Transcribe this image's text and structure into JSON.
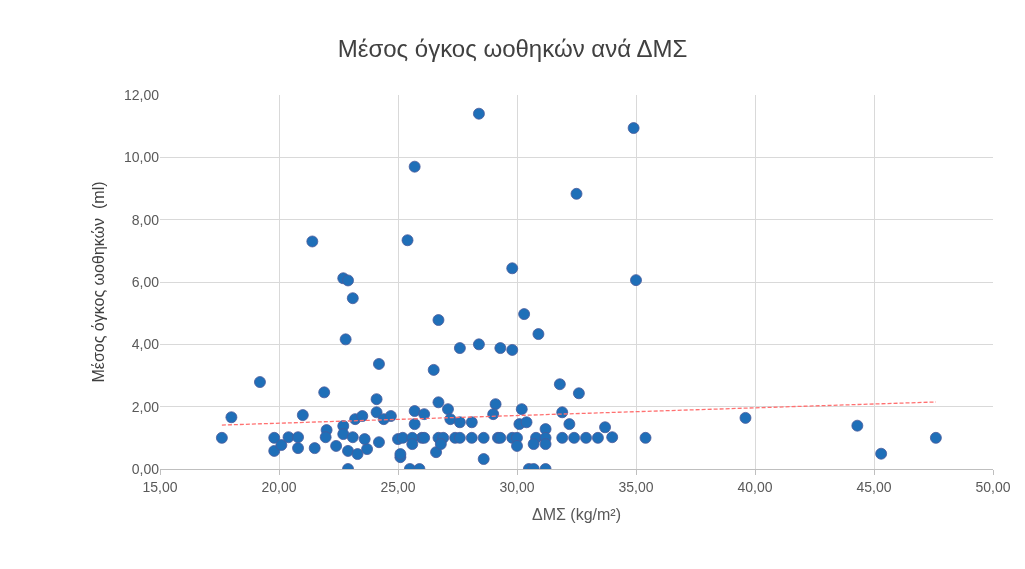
{
  "chart_data": {
    "type": "scatter",
    "title": "Μέσος όγκος ωοθηκών ανά ΔΜΣ",
    "xlabel": "ΔΜΣ (kg/m²)",
    "ylabel": "Μέσος όγκος ωοθηκών  (ml)",
    "xlim": [
      15,
      50
    ],
    "xticks": [
      {
        "value": 15,
        "label": "15,00"
      },
      {
        "value": 20,
        "label": "20,00"
      },
      {
        "value": 25,
        "label": "25,00"
      },
      {
        "value": 30,
        "label": "30,00"
      },
      {
        "value": 35,
        "label": "35,00"
      },
      {
        "value": 40,
        "label": "40,00"
      },
      {
        "value": 45,
        "label": "45,00"
      },
      {
        "value": 50,
        "label": "50,00"
      }
    ],
    "ylim": [
      0,
      12
    ],
    "yticks": [
      {
        "value": 0,
        "label": "0,00"
      },
      {
        "value": 2,
        "label": "2,00"
      },
      {
        "value": 4,
        "label": "4,00"
      },
      {
        "value": 6,
        "label": "6,00"
      },
      {
        "value": 8,
        "label": "8,00"
      },
      {
        "value": 10,
        "label": "10,00"
      },
      {
        "value": 12,
        "label": "12,00"
      }
    ],
    "grid": true,
    "legend": false,
    "series": [
      {
        "marker": "circle",
        "color": "#1f6fb8",
        "x": [
          28.4,
          34.9,
          25.7,
          32.5,
          21.4,
          25.4,
          29.8,
          22.7,
          22.9,
          23.1,
          35.0,
          26.7,
          30.3,
          30.9,
          22.8,
          27.6,
          28.4,
          29.3,
          29.8,
          24.2,
          26.5,
          19.2,
          31.8,
          32.6,
          21.9,
          39.6,
          44.3,
          45.3,
          47.6,
          35.4,
          34.0,
          33.7,
          18.0,
          17.6,
          19.8,
          19.8,
          20.1,
          20.4,
          20.8,
          20.8,
          21.0,
          21.5,
          22.0,
          21.96,
          22.4,
          22.7,
          22.7,
          22.9,
          22.9,
          23.2,
          23.3,
          23.5,
          24.1,
          24.1,
          23.7,
          24.2,
          24.4,
          24.7,
          25.0,
          25.1,
          23.6,
          23.1,
          25.7,
          26.1,
          25.7,
          26.7,
          27.1,
          27.2,
          27.6,
          28.1,
          29.1,
          29.0,
          30.2,
          30.1,
          30.4,
          31.9,
          32.2,
          31.2,
          26.0,
          26.1,
          26.7,
          26.9,
          27.4,
          27.6,
          28.1,
          28.6,
          29.2,
          29.3,
          29.8,
          30.0,
          30.8,
          31.2,
          31.9,
          32.4,
          32.9,
          33.4,
          25.2,
          25.6,
          25.1,
          25.6,
          26.6,
          26.8,
          28.6,
          30.0,
          30.7,
          31.2,
          25.5,
          25.9,
          30.5,
          30.7,
          31.2
        ],
        "values": [
          11.4,
          10.94,
          9.7,
          8.83,
          7.3,
          7.34,
          6.44,
          6.12,
          6.05,
          5.48,
          6.06,
          4.78,
          4.97,
          4.33,
          4.16,
          3.88,
          4.0,
          3.88,
          3.82,
          3.37,
          3.18,
          2.79,
          2.72,
          2.43,
          2.46,
          1.64,
          1.39,
          0.49,
          1.0,
          1.0,
          1.02,
          1.34,
          1.66,
          1.0,
          1.0,
          0.58,
          0.77,
          1.02,
          1.02,
          0.67,
          1.73,
          0.67,
          1.25,
          1.02,
          0.74,
          1.38,
          1.12,
          0.0,
          0.58,
          1.6,
          0.48,
          1.7,
          2.24,
          1.82,
          0.64,
          0.86,
          1.6,
          1.7,
          0.96,
          0.38,
          0.96,
          1.02,
          1.86,
          1.76,
          1.44,
          2.14,
          1.92,
          1.6,
          1.5,
          1.5,
          2.08,
          1.76,
          1.92,
          1.44,
          1.5,
          1.82,
          1.44,
          1.28,
          1.0,
          1.0,
          1.0,
          1.0,
          1.0,
          1.0,
          1.0,
          1.0,
          1.0,
          1.0,
          1.0,
          1.0,
          1.0,
          1.0,
          1.0,
          1.0,
          1.0,
          1.0,
          1.0,
          1.0,
          0.48,
          0.8,
          0.54,
          0.8,
          0.32,
          0.74,
          0.8,
          0.8,
          0.0,
          0.0,
          0.0,
          0.0,
          0.0
        ]
      },
      {
        "type": "line",
        "marker": "none",
        "color": "#ff7070",
        "line_style": "dashed",
        "x": [
          17.6,
          47.6
        ],
        "values": [
          1.41,
          2.15
        ]
      }
    ]
  }
}
